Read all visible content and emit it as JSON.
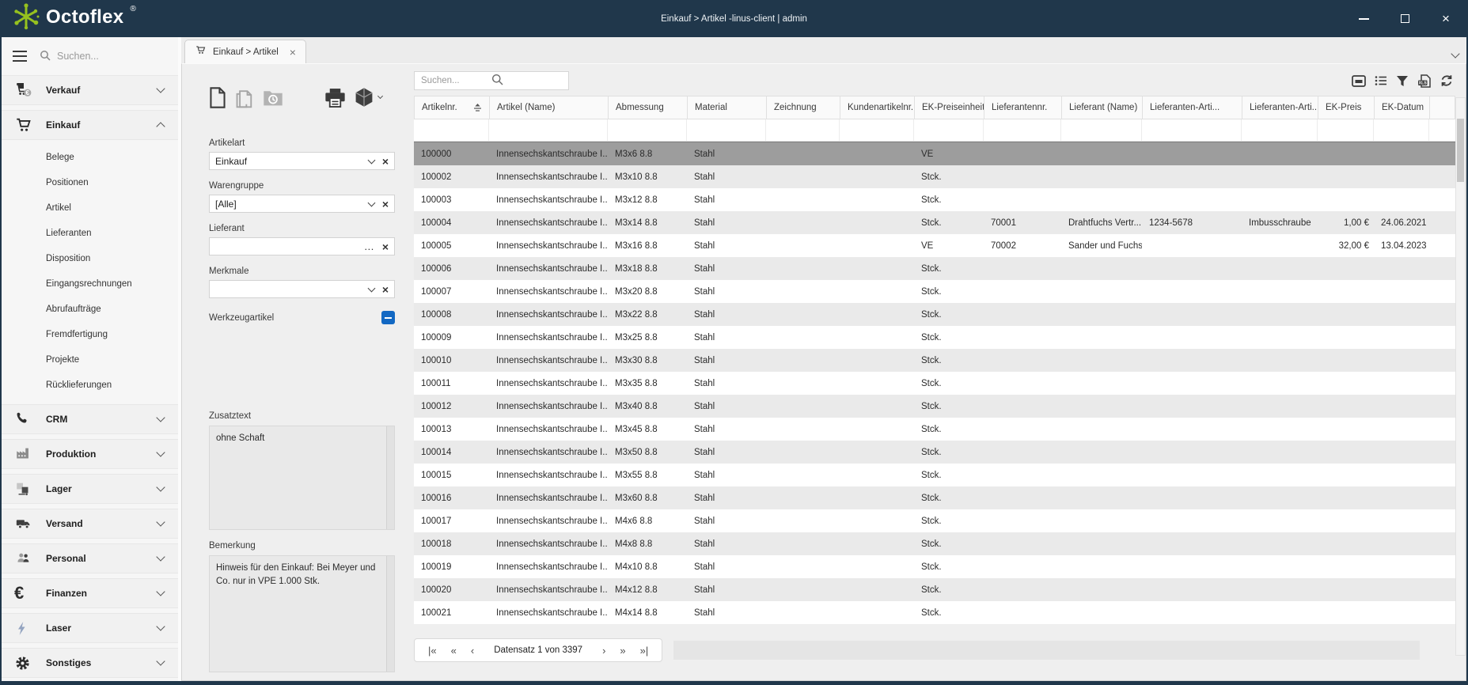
{
  "window": {
    "logo": "Octoflex",
    "registered_mark": "®",
    "titlebar_text": "Einkauf > Artikel -linus-client | admin",
    "controls": [
      "minimize",
      "maximize",
      "close"
    ]
  },
  "colors": {
    "titlebar": "#20374b",
    "logo_green": "#95c11f",
    "checkbox_blue": "#1268c3",
    "selected_row": "#9d9d9d"
  },
  "sidebar": {
    "search_placeholder": "Suchen...",
    "sections": [
      {
        "id": "verkauf",
        "label": "Verkauf",
        "icon": "cart-euro",
        "expanded": false
      },
      {
        "id": "einkauf",
        "label": "Einkauf",
        "icon": "cart",
        "expanded": true,
        "children": [
          "Belege",
          "Positionen",
          "Artikel",
          "Lieferanten",
          "Disposition",
          "Eingangsrechnungen",
          "Abrufaufträge",
          "Fremdfertigung",
          "Projekte",
          "Rücklieferungen"
        ]
      },
      {
        "id": "crm",
        "label": "CRM",
        "icon": "phone",
        "expanded": false
      },
      {
        "id": "produktion",
        "label": "Produktion",
        "icon": "factory",
        "expanded": false
      },
      {
        "id": "lager",
        "label": "Lager",
        "icon": "boxes",
        "expanded": false
      },
      {
        "id": "versand",
        "label": "Versand",
        "icon": "truck",
        "expanded": false
      },
      {
        "id": "personal",
        "label": "Personal",
        "icon": "people",
        "expanded": false
      },
      {
        "id": "finanzen",
        "label": "Finanzen",
        "icon": "euro",
        "expanded": false
      },
      {
        "id": "laser",
        "label": "Laser",
        "icon": "bolt",
        "expanded": false
      },
      {
        "id": "sonstiges",
        "label": "Sonstiges",
        "icon": "gear",
        "expanded": false
      }
    ]
  },
  "tab": {
    "label": "Einkauf > Artikel",
    "icon": "cart"
  },
  "filter_panel": {
    "toolbar_icons": [
      "new-article",
      "copy-article",
      "article-history",
      "print",
      "package"
    ],
    "fields": [
      {
        "label": "Artikelart",
        "value": "Einkauf",
        "control": "select"
      },
      {
        "label": "Warengruppe",
        "value": "[Alle]",
        "control": "select"
      },
      {
        "label": "Lieferant",
        "value": "",
        "control": "lookup"
      },
      {
        "label": "Merkmale",
        "value": "",
        "control": "select"
      }
    ],
    "werkzeugartikel_label": "Werkzeugartikel",
    "werkzeugartikel_state": "indeterminate",
    "zusatztext": {
      "label": "Zusatztext",
      "value": "ohne Schaft"
    },
    "bemerkung": {
      "label": "Bemerkung",
      "value": "Hinweis für den Einkauf: Bei Meyer und Co. nur in VPE 1.000 Stk."
    }
  },
  "table": {
    "search_placeholder": "Suchen...",
    "toolbar_icons": [
      "collapse-panel",
      "list-view",
      "filter",
      "export-xls",
      "refresh"
    ],
    "columns": [
      "Artikelnr.",
      "Artikel (Name)",
      "Abmessung",
      "Material",
      "Zeichnung",
      "Kundenartikelnr.",
      "EK-Preiseinheit",
      "Lieferantennr.",
      "Lieferant (Name)",
      "Lieferanten-Arti...",
      "Lieferanten-Arti...",
      "EK-Preis",
      "EK-Datum"
    ],
    "sorted_column": "Artikelnr.",
    "selected_artikelnr": "100000",
    "rows": [
      [
        "100000",
        "Innensechskantschraube I...",
        "M3x6 8.8",
        "Stahl",
        "",
        "",
        "VE",
        "",
        "",
        "",
        "",
        "",
        ""
      ],
      [
        "100002",
        "Innensechskantschraube I...",
        "M3x10 8.8",
        "Stahl",
        "",
        "",
        "Stck.",
        "",
        "",
        "",
        "",
        "",
        ""
      ],
      [
        "100003",
        "Innensechskantschraube I...",
        "M3x12 8.8",
        "Stahl",
        "",
        "",
        "Stck.",
        "",
        "",
        "",
        "",
        "",
        ""
      ],
      [
        "100004",
        "Innensechskantschraube I...",
        "M3x14 8.8",
        "Stahl",
        "",
        "",
        "Stck.",
        "70001",
        "Drahtfuchs Vertr...",
        "1234-5678",
        "Imbusschraube",
        "1,00 €",
        "24.06.2021"
      ],
      [
        "100005",
        "Innensechskantschraube I...",
        "M3x16 8.8",
        "Stahl",
        "",
        "",
        "VE",
        "70002",
        "Sander und Fuchs",
        "",
        "",
        "32,00 €",
        "13.04.2023"
      ],
      [
        "100006",
        "Innensechskantschraube I...",
        "M3x18 8.8",
        "Stahl",
        "",
        "",
        "Stck.",
        "",
        "",
        "",
        "",
        "",
        ""
      ],
      [
        "100007",
        "Innensechskantschraube I...",
        "M3x20 8.8",
        "Stahl",
        "",
        "",
        "Stck.",
        "",
        "",
        "",
        "",
        "",
        ""
      ],
      [
        "100008",
        "Innensechskantschraube I...",
        "M3x22 8.8",
        "Stahl",
        "",
        "",
        "Stck.",
        "",
        "",
        "",
        "",
        "",
        ""
      ],
      [
        "100009",
        "Innensechskantschraube I...",
        "M3x25 8.8",
        "Stahl",
        "",
        "",
        "Stck.",
        "",
        "",
        "",
        "",
        "",
        ""
      ],
      [
        "100010",
        "Innensechskantschraube I...",
        "M3x30 8.8",
        "Stahl",
        "",
        "",
        "Stck.",
        "",
        "",
        "",
        "",
        "",
        ""
      ],
      [
        "100011",
        "Innensechskantschraube I...",
        "M3x35 8.8",
        "Stahl",
        "",
        "",
        "Stck.",
        "",
        "",
        "",
        "",
        "",
        ""
      ],
      [
        "100012",
        "Innensechskantschraube I...",
        "M3x40 8.8",
        "Stahl",
        "",
        "",
        "Stck.",
        "",
        "",
        "",
        "",
        "",
        ""
      ],
      [
        "100013",
        "Innensechskantschraube I...",
        "M3x45 8.8",
        "Stahl",
        "",
        "",
        "Stck.",
        "",
        "",
        "",
        "",
        "",
        ""
      ],
      [
        "100014",
        "Innensechskantschraube I...",
        "M3x50 8.8",
        "Stahl",
        "",
        "",
        "Stck.",
        "",
        "",
        "",
        "",
        "",
        ""
      ],
      [
        "100015",
        "Innensechskantschraube I...",
        "M3x55 8.8",
        "Stahl",
        "",
        "",
        "Stck.",
        "",
        "",
        "",
        "",
        "",
        ""
      ],
      [
        "100016",
        "Innensechskantschraube I...",
        "M3x60 8.8",
        "Stahl",
        "",
        "",
        "Stck.",
        "",
        "",
        "",
        "",
        "",
        ""
      ],
      [
        "100017",
        "Innensechskantschraube I...",
        "M4x6 8.8",
        "Stahl",
        "",
        "",
        "Stck.",
        "",
        "",
        "",
        "",
        "",
        ""
      ],
      [
        "100018",
        "Innensechskantschraube I...",
        "M4x8 8.8",
        "Stahl",
        "",
        "",
        "Stck.",
        "",
        "",
        "",
        "",
        "",
        ""
      ],
      [
        "100019",
        "Innensechskantschraube I...",
        "M4x10 8.8",
        "Stahl",
        "",
        "",
        "Stck.",
        "",
        "",
        "",
        "",
        "",
        ""
      ],
      [
        "100020",
        "Innensechskantschraube I...",
        "M4x12 8.8",
        "Stahl",
        "",
        "",
        "Stck.",
        "",
        "",
        "",
        "",
        "",
        ""
      ],
      [
        "100021",
        "Innensechskantschraube I...",
        "M4x14 8.8",
        "Stahl",
        "",
        "",
        "Stck.",
        "",
        "",
        "",
        "",
        "",
        ""
      ]
    ]
  },
  "pagination": {
    "status": "Datensatz 1 von 3397",
    "buttons": [
      "first",
      "fast-prev",
      "prev",
      "next",
      "fast-next",
      "last"
    ]
  }
}
